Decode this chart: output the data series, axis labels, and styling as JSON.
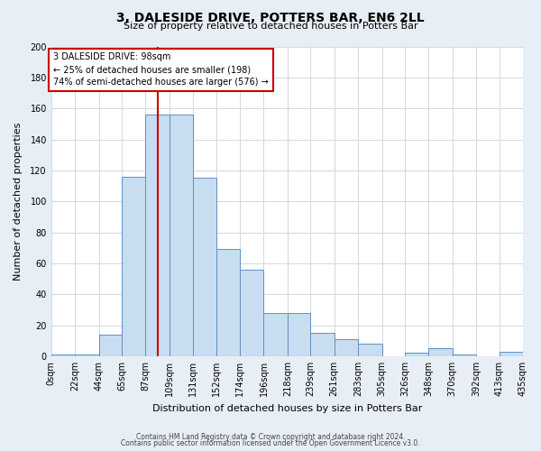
{
  "title": "3, DALESIDE DRIVE, POTTERS BAR, EN6 2LL",
  "subtitle": "Size of property relative to detached houses in Potters Bar",
  "xlabel": "Distribution of detached houses by size in Potters Bar",
  "ylabel": "Number of detached properties",
  "bin_edges": [
    0,
    22,
    44,
    65,
    87,
    109,
    131,
    152,
    174,
    196,
    218,
    239,
    261,
    283,
    305,
    326,
    348,
    370,
    392,
    413,
    435
  ],
  "bin_labels": [
    "0sqm",
    "22sqm",
    "44sqm",
    "65sqm",
    "87sqm",
    "109sqm",
    "131sqm",
    "152sqm",
    "174sqm",
    "196sqm",
    "218sqm",
    "239sqm",
    "261sqm",
    "283sqm",
    "305sqm",
    "326sqm",
    "348sqm",
    "370sqm",
    "392sqm",
    "413sqm",
    "435sqm"
  ],
  "counts": [
    1,
    1,
    14,
    116,
    156,
    156,
    115,
    69,
    56,
    28,
    28,
    15,
    11,
    8,
    0,
    2,
    5,
    1,
    0,
    3
  ],
  "bar_color": "#c8ddf0",
  "bar_edge_color": "#6090c0",
  "red_line_x": 98,
  "ylim": [
    0,
    200
  ],
  "yticks": [
    0,
    20,
    40,
    60,
    80,
    100,
    120,
    140,
    160,
    180,
    200
  ],
  "annotation_text": "3 DALESIDE DRIVE: 98sqm\n← 25% of detached houses are smaller (198)\n74% of semi-detached houses are larger (576) →",
  "annotation_box_edge": "#cc0000",
  "footer_line1": "Contains HM Land Registry data © Crown copyright and database right 2024.",
  "footer_line2": "Contains public sector information licensed under the Open Government Licence v3.0.",
  "background_color": "#e8eef5",
  "plot_background_color": "#ffffff",
  "title_fontsize": 10,
  "subtitle_fontsize": 8,
  "xlabel_fontsize": 8,
  "ylabel_fontsize": 8,
  "tick_fontsize": 7,
  "footer_fontsize": 5.5
}
